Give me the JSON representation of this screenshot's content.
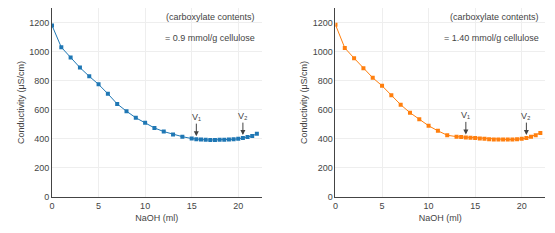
{
  "chart_data": [
    {
      "type": "line",
      "marker": "square",
      "xlabel": "NaOH (ml)",
      "ylabel": "Conductivity (μS/cm)",
      "xlim": [
        0,
        22.5
      ],
      "ylim": [
        0,
        1300
      ],
      "xticks": [
        0,
        5,
        10,
        15,
        20
      ],
      "yticks": [
        0,
        200,
        400,
        600,
        800,
        1000,
        1200
      ],
      "x": [
        0,
        1,
        2,
        3,
        4,
        5,
        6,
        7,
        8,
        9,
        10,
        11,
        12,
        13,
        14,
        15,
        15.5,
        16,
        16.5,
        17,
        17.5,
        18,
        18.5,
        19,
        19.5,
        20,
        20.5,
        21,
        21.5,
        22
      ],
      "values": [
        1180,
        1030,
        960,
        890,
        830,
        775,
        710,
        640,
        590,
        545,
        510,
        475,
        450,
        430,
        415,
        402,
        398,
        395,
        393,
        392,
        392,
        393,
        394,
        395,
        397,
        400,
        405,
        412,
        420,
        435
      ],
      "annotations": [
        {
          "text": "(carboxylate contents)"
        },
        {
          "text": "= 0.9 mmol/g cellulose"
        },
        {
          "text": "V₁",
          "x": 15.5,
          "y": 398
        },
        {
          "text": "V₂",
          "x": 20.5,
          "y": 405
        }
      ]
    },
    {
      "type": "line",
      "marker": "square",
      "xlabel": "NaOH (ml)",
      "ylabel": "Conductivity (μS/cm)",
      "xlim": [
        0,
        22.5
      ],
      "ylim": [
        0,
        1300
      ],
      "xticks": [
        0,
        5,
        10,
        15,
        20
      ],
      "yticks": [
        0,
        200,
        400,
        600,
        800,
        1000,
        1200
      ],
      "x": [
        0,
        1,
        2,
        3,
        4,
        5,
        6,
        7,
        8,
        9,
        10,
        11,
        12,
        13,
        13.5,
        14,
        14.5,
        15,
        15.5,
        16,
        16.5,
        17,
        17.5,
        18,
        18.5,
        19,
        19.5,
        20,
        20.5,
        21,
        21.5,
        22
      ],
      "values": [
        1185,
        1025,
        955,
        885,
        820,
        765,
        700,
        635,
        580,
        535,
        490,
        455,
        425,
        415,
        413,
        410,
        408,
        405,
        402,
        400,
        398,
        396,
        395,
        395,
        395,
        396,
        397,
        400,
        405,
        415,
        425,
        440
      ],
      "annotations": [
        {
          "text": "(carboxylate contents)"
        },
        {
          "text": "= 1.40 mmol/g cellulose"
        },
        {
          "text": "V₁",
          "x": 14.0,
          "y": 410
        },
        {
          "text": "V₂",
          "x": 20.5,
          "y": 405
        }
      ]
    }
  ]
}
